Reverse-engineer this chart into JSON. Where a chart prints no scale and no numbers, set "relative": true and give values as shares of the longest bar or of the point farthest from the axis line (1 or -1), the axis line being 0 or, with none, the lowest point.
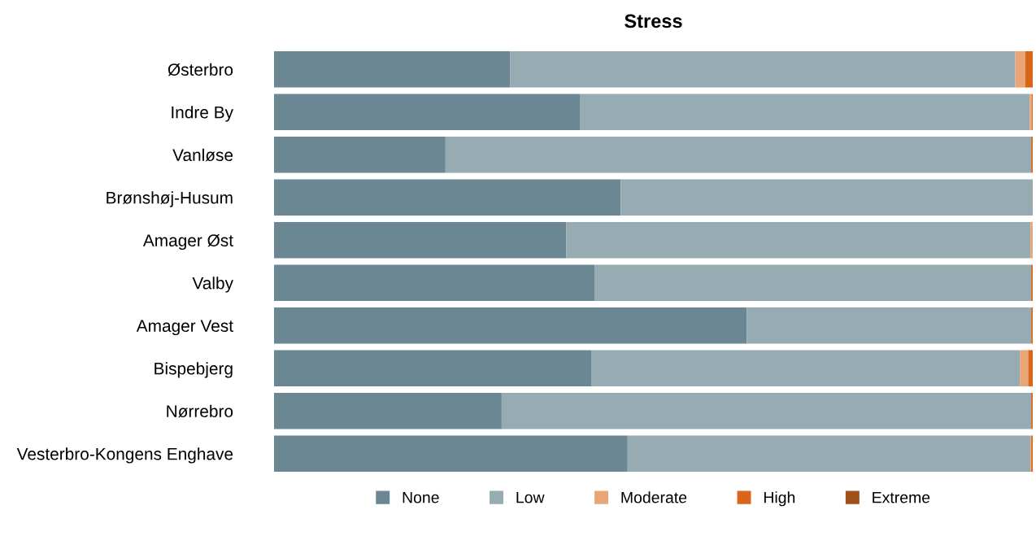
{
  "chart_data": {
    "type": "bar",
    "title": "Stress",
    "orientation": "horizontal",
    "stacked": true,
    "relative": true,
    "grid": false,
    "legend": "bottom",
    "categories": [
      "Østerbro",
      "Indre By",
      "Vanløse",
      "Brønshøj-Husum",
      "Amager Øst",
      "Valby",
      "Amager Vest",
      "Bispebjerg",
      "Nørrebro",
      "Vesterbro-Kongens Enghave"
    ],
    "series": [
      {
        "name": "None",
        "color": "#6b8794",
        "values": [
          0.311,
          0.403,
          0.226,
          0.457,
          0.385,
          0.423,
          0.623,
          0.418,
          0.3,
          0.466
        ]
      },
      {
        "name": "Low",
        "color": "#96abb2",
        "values": [
          0.666,
          0.593,
          0.772,
          0.543,
          0.612,
          0.575,
          0.375,
          0.565,
          0.698,
          0.531
        ]
      },
      {
        "name": "Moderate",
        "color": "#e8a677",
        "values": [
          0.013,
          0.003,
          0,
          0,
          0.003,
          0,
          0,
          0.011,
          0,
          0.001
        ]
      },
      {
        "name": "High",
        "color": "#d9651a",
        "values": [
          0.01,
          0.001,
          0.002,
          0,
          0,
          0.002,
          0.002,
          0.006,
          0.002,
          0.002
        ]
      },
      {
        "name": "Extreme",
        "color": "#a0501a",
        "values": [
          0,
          0,
          0,
          0,
          0,
          0,
          0,
          0,
          0,
          0
        ]
      }
    ]
  }
}
